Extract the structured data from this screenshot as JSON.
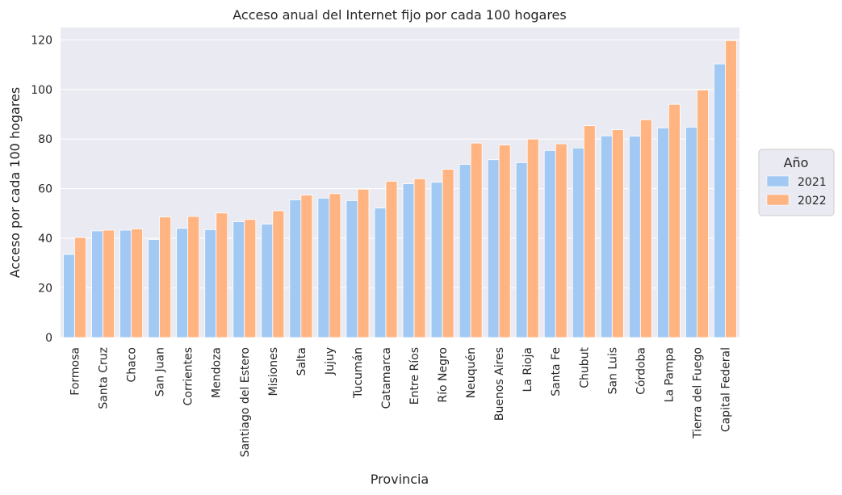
{
  "chart_data": {
    "type": "bar",
    "title": "Acceso anual del Internet fijo por cada 100 hogares",
    "xlabel": "Provincia",
    "ylabel": "Acceso por cada 100 hogares",
    "ylim": [
      0,
      125
    ],
    "yticks": [
      0,
      20,
      40,
      60,
      80,
      100,
      120
    ],
    "grid": true,
    "legend": {
      "title": "Año",
      "placement": "right"
    },
    "categories": [
      "Formosa",
      "Santa Cruz",
      "Chaco",
      "San Juan",
      "Corrientes",
      "Mendoza",
      "Santiago del Estero",
      "Misiones",
      "Salta",
      "Jujuy",
      "Tucumán",
      "Catamarca",
      "Entre Ríos",
      "Río Negro",
      "Neuquén",
      "Buenos Aires",
      "La Rioja",
      "Santa Fe",
      "Chubut",
      "San Luis",
      "Córdoba",
      "La Pampa",
      "Tierra del Fuego",
      "Capital Federal"
    ],
    "series": [
      {
        "name": "2021",
        "color": "#a1c9f4",
        "values": [
          33.5,
          43.0,
          43.3,
          39.5,
          44.0,
          43.5,
          46.7,
          45.7,
          55.5,
          56.2,
          55.2,
          52.2,
          62.0,
          62.6,
          69.8,
          71.7,
          70.5,
          75.4,
          76.4,
          81.3,
          81.2,
          84.5,
          84.8,
          110.3
        ]
      },
      {
        "name": "2022",
        "color": "#ffb482",
        "values": [
          40.3,
          43.3,
          43.8,
          48.6,
          48.8,
          50.2,
          47.6,
          51.1,
          57.4,
          58.0,
          59.8,
          63.0,
          64.0,
          67.8,
          78.4,
          77.6,
          80.0,
          78.1,
          85.4,
          83.8,
          87.8,
          94.0,
          99.8,
          119.7
        ]
      }
    ]
  }
}
